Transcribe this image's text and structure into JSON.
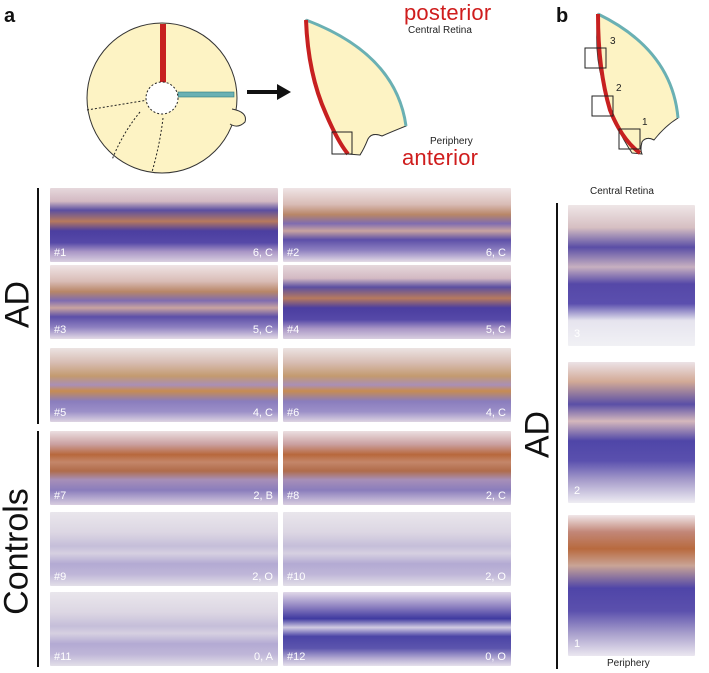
{
  "panel_a": {
    "letter": "a",
    "posterior": "posterior",
    "central_retina": "Central Retina",
    "periphery": "Periphery",
    "anterior": "anterior",
    "group_ad": "AD",
    "group_controls": "Controls",
    "tiles": [
      {
        "num": "#1",
        "score": "6, C",
        "tone": "ad_dense"
      },
      {
        "num": "#2",
        "score": "6, C",
        "tone": "ad_mid"
      },
      {
        "num": "#3",
        "score": "5, C",
        "tone": "ad_mid"
      },
      {
        "num": "#4",
        "score": "5, C",
        "tone": "ad_dense"
      },
      {
        "num": "#5",
        "score": "4, C",
        "tone": "ad_light"
      },
      {
        "num": "#6",
        "score": "4, C",
        "tone": "ad_light"
      },
      {
        "num": "#7",
        "score": "2, B",
        "tone": "ctrl_stained"
      },
      {
        "num": "#8",
        "score": "2, C",
        "tone": "ctrl_stained"
      },
      {
        "num": "#9",
        "score": "2, O",
        "tone": "ctrl_pale"
      },
      {
        "num": "#10",
        "score": "2, O",
        "tone": "ctrl_pale"
      },
      {
        "num": "#11",
        "score": "0, A",
        "tone": "ctrl_pale"
      },
      {
        "num": "#12",
        "score": "0, O",
        "tone": "ctrl_blue"
      }
    ]
  },
  "panel_b": {
    "letter": "b",
    "box_labels": [
      "3",
      "2",
      "1"
    ],
    "central_retina": "Central Retina",
    "periphery": "Periphery",
    "group_ad": "AD",
    "tiles": [
      {
        "num": "3"
      },
      {
        "num": "2"
      },
      {
        "num": "1"
      }
    ]
  }
}
